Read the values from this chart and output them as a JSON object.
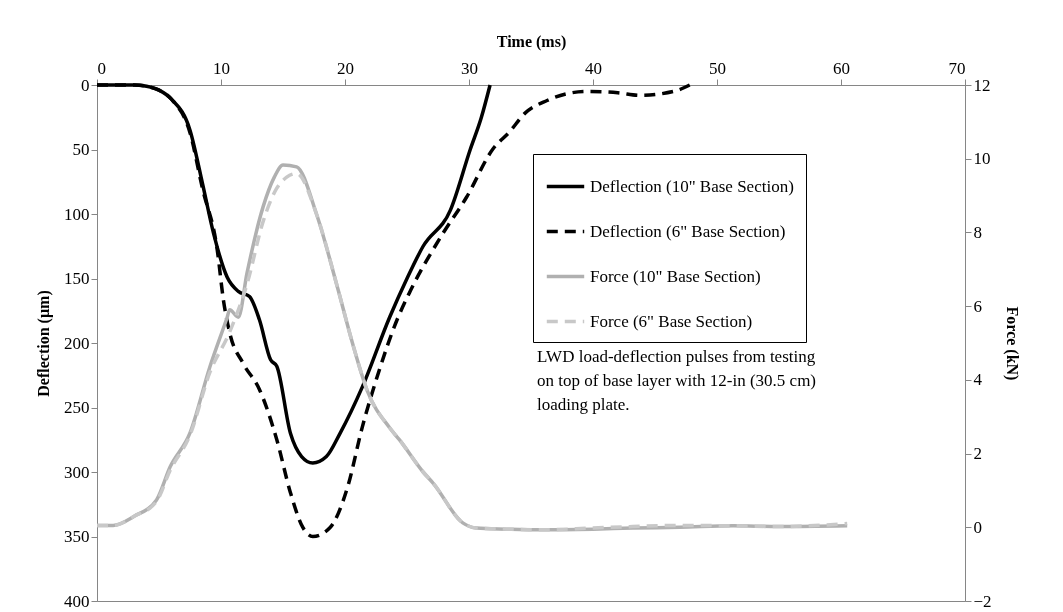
{
  "chart_data": {
    "type": "line",
    "xlabel": "Time (ms)",
    "ylabel": "Deflection (µm)",
    "y2label": "Force (kN)",
    "xlim": [
      0,
      70
    ],
    "xticks": [
      0,
      10,
      20,
      30,
      40,
      50,
      60,
      70
    ],
    "ylim": [
      400,
      0
    ],
    "yticks": [
      0,
      50,
      100,
      150,
      200,
      250,
      300,
      350,
      400
    ],
    "y2lim": [
      -2,
      12
    ],
    "y2ticks": [
      -2,
      0,
      2,
      4,
      6,
      8,
      10,
      12
    ],
    "grid": false,
    "legend": "top right",
    "annotations": [
      "LWD load-deflection pulses from testing\non top of base layer with 12-in (30.5 cm)\nloading plate."
    ],
    "series": [
      {
        "name": "Deflection (10\" Base Section)",
        "color": "#000000",
        "line_style": "solid",
        "x": [
          0,
          2,
          3,
          4,
          5,
          6,
          7.5,
          8.5,
          9.4,
          10.5,
          11.4,
          12.3,
          13.1,
          14,
          14.5,
          15.6,
          16.5,
          17.4,
          18.5,
          19.6,
          21.4,
          23.6,
          25,
          26.3,
          28.5,
          30.1,
          31,
          31.7
        ],
        "values": [
          0,
          0,
          0,
          1,
          4,
          11,
          35,
          76,
          115,
          149,
          160,
          164,
          182,
          213,
          218,
          270,
          288,
          293,
          288,
          270,
          234,
          180,
          150,
          125,
          97,
          50,
          25,
          0
        ]
      },
      {
        "name": "Deflection (6\" Base Section)",
        "color": "#000000",
        "line_style": "dashed",
        "x": [
          0,
          2,
          3,
          4,
          5,
          6,
          7.5,
          8.5,
          9.7,
          10.2,
          10.7,
          11.8,
          13.1,
          14.5,
          15.6,
          16.6,
          17.4,
          18.8,
          20.2,
          21.4,
          22.6,
          24.2,
          25.2,
          27.9,
          29.8,
          31.9,
          33.3,
          34.5,
          36.3,
          39.5,
          42,
          43.8,
          46.5,
          47.8
        ],
        "values": [
          0,
          0,
          0,
          1,
          4,
          11,
          37,
          80,
          128,
          167,
          192,
          216,
          236,
          275,
          316,
          343,
          350,
          343,
          312,
          265,
          226,
          182,
          161,
          115,
          87,
          50,
          36,
          22,
          12,
          5,
          6,
          8,
          5,
          0
        ]
      },
      {
        "name": "Force (10\" Base Section)",
        "color": "#b0b0b0",
        "line_style": "solid",
        "axis": "y2",
        "x": [
          0,
          1.3,
          3,
          4.8,
          5.9,
          7.5,
          9.1,
          10.5,
          10.7,
          11.4,
          12.1,
          13.4,
          14.3,
          15,
          16.1,
          17.7,
          19.4,
          20.6,
          21.8,
          23.6,
          24.4,
          26.3,
          27.1,
          29.5,
          30.6,
          33,
          35.7,
          40,
          43.2,
          47,
          51.3,
          55,
          60.5
        ],
        "values": [
          0.05,
          0.05,
          0.3,
          0.74,
          1.64,
          2.56,
          4.35,
          5.7,
          5.9,
          5.7,
          6.9,
          8.7,
          9.5,
          9.83,
          9.78,
          8.5,
          6.5,
          5.0,
          3.7,
          2.7,
          2.37,
          1.5,
          1.2,
          0.12,
          -0.02,
          -0.05,
          -0.07,
          -0.05,
          -0.02,
          0.0,
          0.04,
          0.02,
          0.04
        ]
      },
      {
        "name": "Force (6\" Base Section)",
        "color": "#c8c8c8",
        "line_style": "dashed",
        "axis": "y2",
        "x": [
          0,
          1.3,
          3,
          4.8,
          5.9,
          7.5,
          9.1,
          10.7,
          12.1,
          13.4,
          14.5,
          15.3,
          16.1,
          17.7,
          19.4,
          20.6,
          21.8,
          23.6,
          24.4,
          26.3,
          27.1,
          29.5,
          30.6,
          33,
          35.7,
          40,
          43.2,
          47,
          51.3,
          55,
          60.5
        ],
        "values": [
          0.05,
          0.05,
          0.3,
          0.7,
          1.55,
          2.5,
          4.2,
          5.3,
          6.6,
          8.3,
          9.2,
          9.5,
          9.6,
          8.5,
          6.5,
          5.0,
          3.7,
          2.7,
          2.37,
          1.5,
          1.2,
          0.12,
          -0.02,
          -0.05,
          -0.07,
          -0.02,
          0.02,
          0.05,
          0.04,
          0.02,
          0.1
        ]
      }
    ]
  }
}
